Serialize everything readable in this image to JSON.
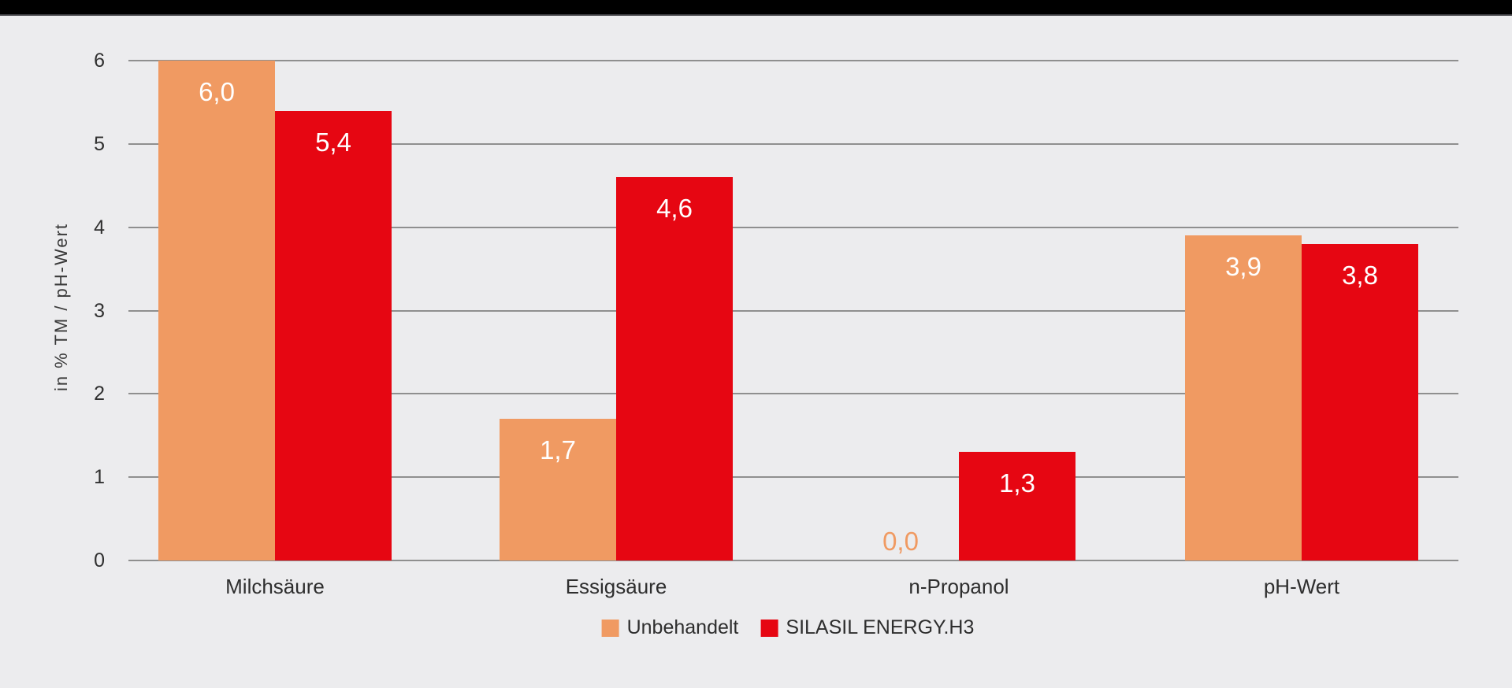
{
  "page": {
    "background_color": "#ececee",
    "top_bar_color": "#000000",
    "top_bar_underline_color": "#3d3d41"
  },
  "chart_data": {
    "type": "bar",
    "title": "",
    "categories": [
      "Milchsäure",
      "Essigsäure",
      "n-Propanol",
      "pH-Wert"
    ],
    "series": [
      {
        "name": "Unbehandelt",
        "color": "#f09a62",
        "values": [
          6.0,
          1.7,
          0.0,
          3.9
        ],
        "value_labels": [
          "6,0",
          "1,7",
          "0,0",
          "3,9"
        ]
      },
      {
        "name": "SILASIL ENERGY.H3",
        "color": "#e60612",
        "values": [
          5.4,
          4.6,
          1.3,
          3.8
        ],
        "value_labels": [
          "5,4",
          "4,6",
          "1,3",
          "3,8"
        ]
      }
    ],
    "xlabel": "",
    "ylabel": "in % TM / pH-Wert",
    "ylim": [
      0,
      6
    ],
    "yticks": [
      0,
      1,
      2,
      3,
      4,
      5,
      6
    ],
    "ytick_labels": [
      "0",
      "1",
      "2",
      "3",
      "4",
      "5",
      "6"
    ],
    "grid": true,
    "gridline_color": "#8f8f8f",
    "axis_text_color": "#303030",
    "value_label_color_inside": "#ffffff",
    "legend_position": "bottom-center"
  }
}
